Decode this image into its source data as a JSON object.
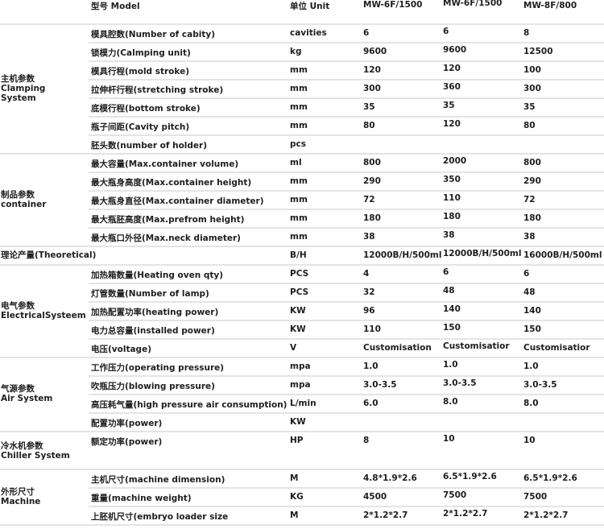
{
  "header": {
    "model": "型号 Model",
    "unit": "单位 Unit",
    "models": [
      "MW-6F/1500",
      "MW-6F/1500",
      "MW-8F/800"
    ]
  },
  "groups": [
    {
      "label": "主机参数\nClamping\nSystem",
      "rows": [
        {
          "param": "模具腔数(Number of cabity)",
          "unit": "cavities",
          "values": [
            "6",
            "6",
            "8"
          ]
        },
        {
          "param": "锁模力(Calmping unit)",
          "unit": "kg",
          "values": [
            "9600",
            "9600",
            "12500"
          ]
        },
        {
          "param": "模具行程(mold stroke)",
          "unit": "mm",
          "values": [
            "120",
            "120",
            "100"
          ]
        },
        {
          "param": "拉伸杆行程(stretching stroke)",
          "unit": "mm",
          "values": [
            "300",
            "360",
            "300"
          ]
        },
        {
          "param": "底模行程(bottom stroke)",
          "unit": "mm",
          "values": [
            "35",
            "35",
            "35"
          ]
        },
        {
          "param": "瓶子间距(Cavity pitch)",
          "unit": "mm",
          "values": [
            "80",
            "120",
            "80"
          ]
        },
        {
          "param": "胚头数(number of holder)",
          "unit": "pcs",
          "values": [
            "",
            "",
            ""
          ]
        }
      ]
    },
    {
      "label": "制品参数\ncontainer",
      "rows": [
        {
          "param": "最大容量(Max.container volume)",
          "unit": "ml",
          "values": [
            "800",
            "2000",
            "800"
          ]
        },
        {
          "param": "最大瓶身高度(Max.container height)",
          "unit": "mm",
          "values": [
            "290",
            "350",
            "290"
          ]
        },
        {
          "param": "最大瓶身直径(Max.container diameter)",
          "unit": "mm",
          "values": [
            "72",
            "110",
            "72"
          ]
        },
        {
          "param": "最大瓶胚高度(Max.prefrom height)",
          "unit": "mm",
          "values": [
            "180",
            "180",
            "180"
          ]
        },
        {
          "param": "最大瓶口外径(Max.neck diameter)",
          "unit": "mm",
          "values": [
            "38",
            "38",
            "38"
          ]
        }
      ]
    },
    {
      "label": "理论产量(Theoretical)",
      "inline": true,
      "rows": [
        {
          "param": "",
          "unit": "B/H",
          "values": [
            "12000B/H/500ml",
            "12000B/H/500ml",
            "16000B/H/500ml"
          ]
        }
      ]
    },
    {
      "label": "电气参数\nElectricalSysteem",
      "rows": [
        {
          "param": "加热箱数量(Heating oven qty)",
          "unit": "PCS",
          "values": [
            "4",
            "6",
            "6"
          ]
        },
        {
          "param": "灯管数量(Number of lamp)",
          "unit": "PCS",
          "values": [
            "32",
            "48",
            "48"
          ]
        },
        {
          "param": "加热配置功率(heating power)",
          "unit": "KW",
          "values": [
            "96",
            "140",
            "140"
          ]
        },
        {
          "param": "电力总容量(installed power)",
          "unit": "KW",
          "values": [
            "110",
            "150",
            "150"
          ]
        },
        {
          "param": "电压(voltage)",
          "unit": "V",
          "values": [
            "Customisation",
            "Customisatior",
            "Customisatior"
          ]
        }
      ]
    },
    {
      "label": "气源参数\nAir System",
      "rows": [
        {
          "param": "工作压力(operating pressure)",
          "unit": "mpa",
          "values": [
            "1.0",
            "1.0",
            "1.0"
          ]
        },
        {
          "param": "吹瓶压力(blowing pressure)",
          "unit": "mpa",
          "values": [
            "3.0-3.5",
            "3.0-3.5",
            "3.0-3.5"
          ]
        },
        {
          "param": "高压耗气量(high pressure air consumption)",
          "unit": "L/min",
          "values": [
            "6.0",
            "8.0",
            "8.0"
          ]
        },
        {
          "param": "配置功率(power)",
          "unit": "KW",
          "values": [
            "",
            "",
            ""
          ]
        }
      ]
    },
    {
      "label": "冷水机参数\nChiller System",
      "tall": true,
      "rows": [
        {
          "param": "额定功率(power)",
          "unit": "HP",
          "values": [
            "8",
            "10",
            "10"
          ]
        }
      ]
    },
    {
      "label": "外形尺寸\nMachine",
      "rows": [
        {
          "param": "主机尺寸(machine dimension)",
          "unit": "M",
          "values": [
            "4.8*1.9*2.6",
            "6.5*1.9*2.6",
            "6.5*1.9*2.6"
          ]
        },
        {
          "param": "重量(machine weight)",
          "unit": "KG",
          "values": [
            "4500",
            "7500",
            "7500"
          ]
        },
        {
          "param": "上胚机尺寸(embryo loader size",
          "unit": "M",
          "values": [
            "2*1.2*2.7",
            "2*1.2*2.7",
            "2*1.2*2.7"
          ]
        }
      ]
    }
  ]
}
